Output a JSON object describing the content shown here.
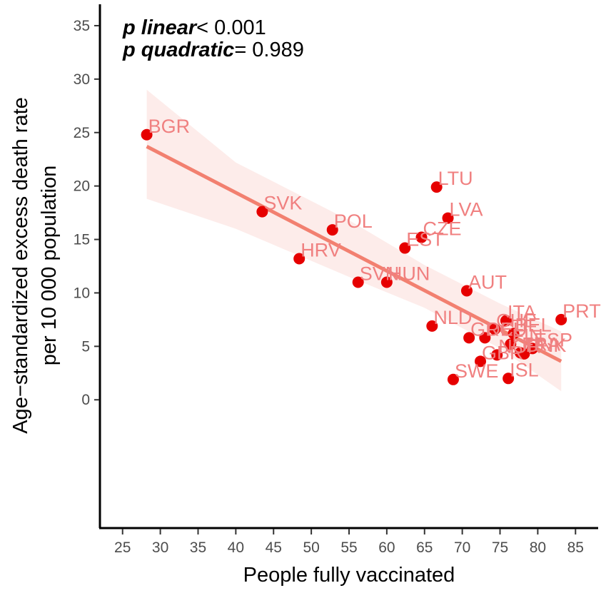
{
  "chart_data": {
    "type": "scatter",
    "xlabel": "People fully vaccinated",
    "ylabel_lines": [
      "Age−standardized excess death rate",
      "per 10 000 population"
    ],
    "xlim": [
      22,
      88
    ],
    "ylim": [
      -12,
      37
    ],
    "x_ticks": [
      25,
      30,
      35,
      40,
      45,
      50,
      55,
      60,
      65,
      70,
      75,
      80,
      85
    ],
    "y_ticks": [
      0,
      5,
      10,
      15,
      20,
      25,
      30,
      35
    ],
    "annotations": [
      {
        "italic": "p linear",
        "rest": "< 0.001"
      },
      {
        "italic": "p quadratic",
        "rest": "= 0.989"
      }
    ],
    "points": [
      {
        "label": "BGR",
        "x": 28.2,
        "y": 24.8
      },
      {
        "label": "SVK",
        "x": 43.5,
        "y": 17.6
      },
      {
        "label": "POL",
        "x": 52.8,
        "y": 15.9
      },
      {
        "label": "HRV",
        "x": 48.4,
        "y": 13.2
      },
      {
        "label": "SVN",
        "x": 56.2,
        "y": 11.0
      },
      {
        "label": "HUN",
        "x": 60.0,
        "y": 11.0
      },
      {
        "label": "LTU",
        "x": 66.6,
        "y": 19.9
      },
      {
        "label": "LVA",
        "x": 68.1,
        "y": 17.0
      },
      {
        "label": "CZE",
        "x": 64.6,
        "y": 15.2
      },
      {
        "label": "EST",
        "x": 62.4,
        "y": 14.2
      },
      {
        "label": "AUT",
        "x": 70.6,
        "y": 10.2
      },
      {
        "label": "GRC",
        "x": 70.9,
        "y": 5.8
      },
      {
        "label": "NLD",
        "x": 66.0,
        "y": 6.9
      },
      {
        "label": "ITA",
        "x": 75.8,
        "y": 7.4
      },
      {
        "label": "CHE",
        "x": 74.3,
        "y": 6.6
      },
      {
        "label": "BEL",
        "x": 76.8,
        "y": 6.2
      },
      {
        "label": "DEU",
        "x": 73.0,
        "y": 5.8
      },
      {
        "label": "FIN",
        "x": 76.4,
        "y": 5.2
      },
      {
        "label": "FRA",
        "x": 77.7,
        "y": 4.4
      },
      {
        "label": "ESP",
        "x": 79.3,
        "y": 4.8
      },
      {
        "label": "DNK",
        "x": 78.2,
        "y": 4.3
      },
      {
        "label": "NOR",
        "x": 74.6,
        "y": 4.2
      },
      {
        "label": "GBR",
        "x": 72.4,
        "y": 3.6
      },
      {
        "label": "PRT",
        "x": 83.1,
        "y": 7.5
      },
      {
        "label": "SWE",
        "x": 68.8,
        "y": 1.9
      },
      {
        "label": "ISL",
        "x": 76.1,
        "y": 2.0
      }
    ],
    "fit": {
      "x0": 28.2,
      "y0": 23.7,
      "x1": 83.1,
      "y1": 3.6
    },
    "confidence_band": {
      "x": [
        28.2,
        40,
        55,
        65,
        75,
        83.1
      ],
      "lower": [
        18.8,
        16.0,
        11.5,
        8.6,
        4.8,
        0.8
      ],
      "upper": [
        29.0,
        22.2,
        16.8,
        12.6,
        9.0,
        6.4
      ]
    }
  }
}
